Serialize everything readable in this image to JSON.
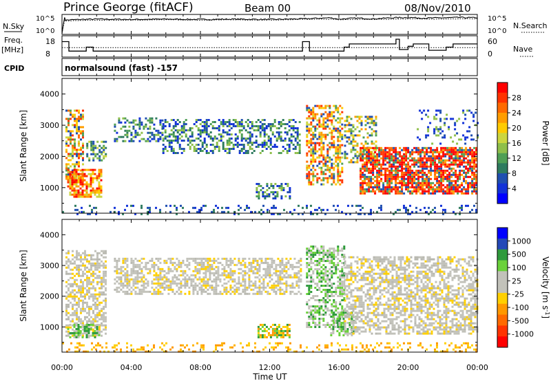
{
  "header": {
    "station": "Prince George (fitACF)",
    "beam": "Beam 00",
    "date": "08/Nov/2010"
  },
  "panel_labels": {
    "nsky": "N.Sky",
    "nsky_ticks": [
      "10^5",
      "10^0"
    ],
    "nsearch": "N.Search",
    "nsearch_ticks": [
      "10^5",
      "10^0"
    ],
    "freq": "Freq.",
    "freq_unit": "[MHz]",
    "freq_ticks": [
      "18",
      "8"
    ],
    "nave": "Nave",
    "nave_ticks": [
      "60",
      "0"
    ],
    "cpid": "CPID",
    "cpid_value": "normalsound (fast) -157"
  },
  "chart_data": [
    {
      "type": "line",
      "name": "noise-panel",
      "x": [
        0,
        0.15,
        0.2,
        1,
        2,
        4,
        6,
        8,
        10,
        12,
        14,
        15.5,
        16,
        17,
        18,
        19,
        20,
        21,
        22,
        23,
        24
      ],
      "n_sky": [
        0,
        4.8,
        3.9,
        4.1,
        4.2,
        4.1,
        4.2,
        4.1,
        4.2,
        4.1,
        4.3,
        4.6,
        4.2,
        4.5,
        4.3,
        4.6,
        4.7,
        4.5,
        4.6,
        4.7,
        4.6
      ],
      "n_search": [
        0,
        3.9,
        3.6,
        3.8,
        3.9,
        3.9,
        4.0,
        3.9,
        4.0,
        3.9,
        4.1,
        4.2,
        4.0,
        4.1,
        4.1,
        4.2,
        4.3,
        4.2,
        4.2,
        4.3,
        4.3
      ]
    },
    {
      "type": "line",
      "name": "frequency-nave-panel",
      "freq_steps": [
        {
          "t0": 0.0,
          "t1": 0.4,
          "mhz": 16.5
        },
        {
          "t0": 0.4,
          "t1": 1.4,
          "mhz": 10.5
        },
        {
          "t0": 1.4,
          "t1": 1.8,
          "mhz": 13.0
        },
        {
          "t0": 1.8,
          "t1": 13.9,
          "mhz": 10.5
        },
        {
          "t0": 13.9,
          "t1": 14.3,
          "mhz": 16.5
        },
        {
          "t0": 14.3,
          "t1": 16.3,
          "mhz": 10.5
        },
        {
          "t0": 16.3,
          "t1": 16.6,
          "mhz": 13.0
        },
        {
          "t0": 16.6,
          "t1": 19.3,
          "mhz": 15.0
        },
        {
          "t0": 19.3,
          "t1": 19.5,
          "mhz": 18.0
        },
        {
          "t0": 19.5,
          "t1": 20.0,
          "mhz": 11.5
        },
        {
          "t0": 20.0,
          "t1": 20.3,
          "mhz": 13.5
        },
        {
          "t0": 20.3,
          "t1": 21.2,
          "mhz": 15.0
        },
        {
          "t0": 21.2,
          "t1": 22.2,
          "mhz": 11.0
        },
        {
          "t0": 22.2,
          "t1": 22.6,
          "mhz": 13.0
        },
        {
          "t0": 22.6,
          "t1": 24.0,
          "mhz": 15.0
        }
      ],
      "nave": 28
    },
    {
      "type": "heatmap",
      "name": "power",
      "xlabel": "",
      "ylabel": "Slant Range [km]",
      "colorbar_label": "Power [dB]",
      "colorbar_ticks": [
        "28",
        "24",
        "20",
        "16",
        "12",
        "8",
        "4"
      ],
      "colorbar_colors": [
        "#ff0000",
        "#ff3300",
        "#ff6a00",
        "#ff9d00",
        "#ffcb00",
        "#ccd63f",
        "#8fbf4a",
        "#4f9f55",
        "#2e7b5f",
        "#1f4fb0",
        "#1232d8",
        "#0000ff"
      ],
      "ylim": [
        180,
        4500
      ],
      "y_ticks": [
        1000,
        2000,
        3000,
        4000
      ],
      "regions": [
        {
          "t0": 0.2,
          "t1": 1.2,
          "r0": 1200,
          "r1": 3500,
          "level": "mixed-high"
        },
        {
          "t0": 0.3,
          "t1": 2.3,
          "r0": 700,
          "r1": 1600,
          "level": "high"
        },
        {
          "t0": 1.4,
          "t1": 2.5,
          "r0": 1900,
          "r1": 2500,
          "level": "mid"
        },
        {
          "t0": 3.0,
          "t1": 5.8,
          "r0": 2500,
          "r1": 3250,
          "level": "low"
        },
        {
          "t0": 5.8,
          "t1": 13.8,
          "r0": 2100,
          "r1": 3200,
          "level": "low"
        },
        {
          "t0": 11.2,
          "t1": 13.2,
          "r0": 650,
          "r1": 1150,
          "level": "low"
        },
        {
          "t0": 14.1,
          "t1": 16.2,
          "r0": 1100,
          "r1": 3650,
          "level": "mixed-high"
        },
        {
          "t0": 16.3,
          "t1": 18.2,
          "r0": 1800,
          "r1": 3300,
          "level": "mixed"
        },
        {
          "t0": 17.2,
          "t1": 24.0,
          "r0": 800,
          "r1": 2300,
          "level": "very-high"
        },
        {
          "t0": 20.5,
          "t1": 24.0,
          "r0": 2400,
          "r1": 3500,
          "level": "low-sparse"
        },
        {
          "t0": 0.0,
          "t1": 24.0,
          "r0": 180,
          "r1": 450,
          "level": "ground-low"
        }
      ]
    },
    {
      "type": "heatmap",
      "name": "velocity",
      "xlabel": "Time UT",
      "ylabel": "Slant Range [km]",
      "colorbar_label": "Velocity [m s^-1]",
      "colorbar_ticks": [
        "1000",
        "500",
        "100",
        "25",
        "-25",
        "-100",
        "-500",
        "-1000"
      ],
      "colorbar_colors": [
        "#0000ff",
        "#2348b8",
        "#2f9a3c",
        "#6ad13a",
        "#c2c2ba",
        "#c2c2ba",
        "#ffd000",
        "#ff9900",
        "#ff6a00",
        "#ff3300",
        "#ff0000"
      ],
      "ylim": [
        180,
        4500
      ],
      "y_ticks": [
        1000,
        2000,
        3000,
        4000
      ],
      "x_ticks": [
        "00:00",
        "04:00",
        "08:00",
        "12:00",
        "16:00",
        "20:00",
        "00:00"
      ],
      "regions": [
        {
          "t0": 0.2,
          "t1": 2.5,
          "r0": 700,
          "r1": 3500,
          "level": "grey"
        },
        {
          "t0": 0.3,
          "t1": 2.2,
          "r0": 650,
          "r1": 1100,
          "level": "green"
        },
        {
          "t0": 3.0,
          "t1": 13.8,
          "r0": 2100,
          "r1": 3250,
          "level": "grey"
        },
        {
          "t0": 11.3,
          "t1": 13.2,
          "r0": 650,
          "r1": 1100,
          "level": "yellow-green"
        },
        {
          "t0": 14.1,
          "t1": 16.3,
          "r0": 1000,
          "r1": 3650,
          "level": "grey-green"
        },
        {
          "t0": 15.5,
          "t1": 17.0,
          "r0": 700,
          "r1": 1500,
          "level": "green"
        },
        {
          "t0": 16.3,
          "t1": 24.0,
          "r0": 800,
          "r1": 3300,
          "level": "grey"
        },
        {
          "t0": 0.0,
          "t1": 24.0,
          "r0": 180,
          "r1": 500,
          "level": "ground-yellow"
        }
      ]
    }
  ]
}
